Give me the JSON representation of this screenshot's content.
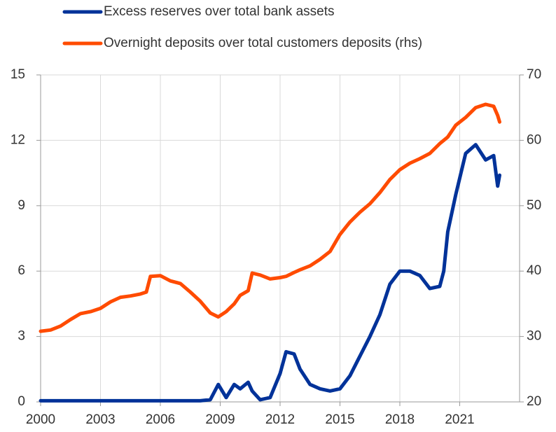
{
  "chart_data": {
    "type": "line",
    "x": [
      2000,
      2000.5,
      2001,
      2001.5,
      2002,
      2002.5,
      2003,
      2003.5,
      2004,
      2004.5,
      2005,
      2005.3,
      2005.5,
      2006,
      2006.5,
      2007,
      2007.5,
      2008,
      2008.5,
      2008.9,
      2009.3,
      2009.7,
      2010,
      2010.4,
      2010.6,
      2011,
      2011.5,
      2012,
      2012.3,
      2012.7,
      2013,
      2013.5,
      2014,
      2014.5,
      2015,
      2015.5,
      2016,
      2016.5,
      2017,
      2017.5,
      2018,
      2018.5,
      2019,
      2019.5,
      2020,
      2020.2,
      2020.4,
      2020.8,
      2021.3,
      2021.8,
      2022.3,
      2022.7,
      2022.9,
      2023.0
    ],
    "series": [
      {
        "name": "Excess reserves over total bank assets",
        "color": "#003299",
        "values": [
          0.05,
          0.05,
          0.05,
          0.05,
          0.05,
          0.05,
          0.05,
          0.05,
          0.05,
          0.05,
          0.05,
          0.05,
          0.05,
          0.05,
          0.05,
          0.05,
          0.05,
          0.05,
          0.1,
          0.8,
          0.2,
          0.8,
          0.6,
          0.9,
          0.5,
          0.1,
          0.2,
          1.3,
          2.3,
          2.2,
          1.5,
          0.8,
          0.6,
          0.5,
          0.6,
          1.2,
          2.1,
          3.0,
          4.0,
          5.4,
          6.0,
          6.0,
          5.8,
          5.2,
          5.3,
          6.0,
          7.8,
          9.5,
          11.4,
          11.8,
          11.1,
          11.3,
          9.9,
          10.4
        ]
      },
      {
        "name": "Overnight deposits over total customers deposits (rhs)",
        "color": "#ff4b00",
        "axis": "y2",
        "values": [
          30.8,
          31.0,
          31.6,
          32.6,
          33.5,
          33.8,
          34.3,
          35.3,
          36.0,
          36.2,
          36.5,
          36.8,
          39.2,
          39.3,
          38.5,
          38.1,
          36.8,
          35.4,
          33.6,
          33.0,
          33.8,
          35.0,
          36.3,
          37.0,
          39.7,
          39.4,
          38.8,
          39.0,
          39.2,
          39.8,
          40.2,
          40.8,
          41.8,
          43.0,
          45.6,
          47.5,
          49.0,
          50.3,
          52.0,
          54.0,
          55.5,
          56.5,
          57.2,
          58.0,
          59.5,
          60.0,
          60.5,
          62.3,
          63.5,
          65.0,
          65.5,
          65.2,
          63.8,
          62.8
        ]
      }
    ],
    "xlim": [
      2000,
      2024
    ],
    "xticks": [
      2000,
      2003,
      2006,
      2009,
      2012,
      2015,
      2018,
      2021
    ],
    "ylim": [
      0,
      15
    ],
    "yticks": [
      0,
      3,
      6,
      9,
      12,
      15
    ],
    "y2lim": [
      20,
      70
    ],
    "y2ticks": [
      20,
      30,
      40,
      50,
      60,
      70
    ],
    "grid": true,
    "legend": "top"
  }
}
